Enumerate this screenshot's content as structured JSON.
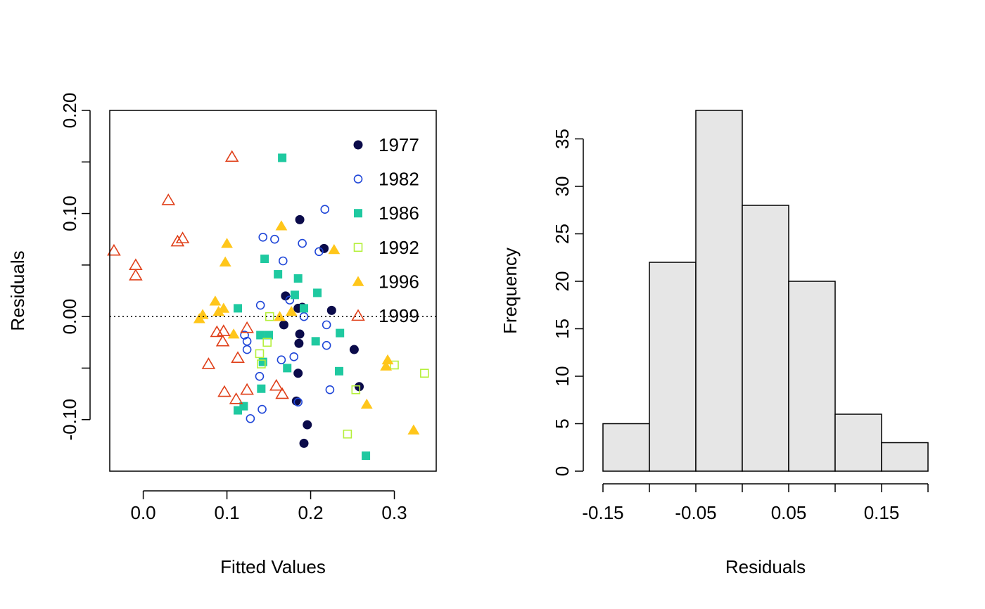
{
  "chart_data": [
    {
      "type": "scatter",
      "title": "",
      "xlabel": "Fitted Values",
      "ylabel": "Residuals",
      "xlim": [
        -0.04,
        0.35
      ],
      "ylim": [
        -0.15,
        0.2
      ],
      "xticks": [
        "0.0",
        "0.1",
        "0.2",
        "0.3"
      ],
      "yticks": [
        "-0.10",
        "0.00",
        "0.10",
        "0.20"
      ],
      "reference_line": {
        "y": 0,
        "style": "dotted"
      },
      "legend": {
        "placement": "top-right"
      },
      "series": [
        {
          "name": "1977",
          "color": "#0b0b4a",
          "marker": "filled-circle",
          "points": [
            [
              0.187,
              0.094
            ],
            [
              0.216,
              0.066
            ],
            [
              0.17,
              0.02
            ],
            [
              0.185,
              0.008
            ],
            [
              0.19,
              0.009
            ],
            [
              0.225,
              0.006
            ],
            [
              0.168,
              -0.008
            ],
            [
              0.187,
              -0.017
            ],
            [
              0.186,
              -0.026
            ],
            [
              0.185,
              -0.055
            ],
            [
              0.258,
              -0.068
            ],
            [
              0.252,
              -0.032
            ],
            [
              0.196,
              -0.105
            ],
            [
              0.192,
              -0.123
            ],
            [
              0.183,
              -0.082
            ]
          ]
        },
        {
          "name": "1982",
          "color": "#1f46d8",
          "marker": "open-circle",
          "points": [
            [
              0.217,
              0.104
            ],
            [
              0.143,
              0.077
            ],
            [
              0.157,
              0.075
            ],
            [
              0.19,
              0.071
            ],
            [
              0.21,
              0.063
            ],
            [
              0.167,
              0.054
            ],
            [
              0.175,
              0.016
            ],
            [
              0.14,
              0.011
            ],
            [
              0.192,
              0.0
            ],
            [
              0.219,
              -0.008
            ],
            [
              0.121,
              -0.018
            ],
            [
              0.124,
              -0.024
            ],
            [
              0.124,
              -0.032
            ],
            [
              0.219,
              -0.028
            ],
            [
              0.18,
              -0.039
            ],
            [
              0.165,
              -0.042
            ],
            [
              0.139,
              -0.058
            ],
            [
              0.223,
              -0.071
            ],
            [
              0.185,
              -0.083
            ],
            [
              0.142,
              -0.09
            ],
            [
              0.128,
              -0.099
            ]
          ]
        },
        {
          "name": "1986",
          "color": "#1fc9a0",
          "marker": "filled-square",
          "points": [
            [
              0.166,
              0.154
            ],
            [
              0.145,
              0.056
            ],
            [
              0.161,
              0.041
            ],
            [
              0.185,
              0.037
            ],
            [
              0.208,
              0.023
            ],
            [
              0.181,
              0.021
            ],
            [
              0.192,
              0.008
            ],
            [
              0.113,
              0.008
            ],
            [
              0.14,
              -0.018
            ],
            [
              0.15,
              -0.018
            ],
            [
              0.235,
              -0.016
            ],
            [
              0.206,
              -0.024
            ],
            [
              0.143,
              -0.044
            ],
            [
              0.172,
              -0.05
            ],
            [
              0.234,
              -0.053
            ],
            [
              0.141,
              -0.07
            ],
            [
              0.12,
              -0.087
            ],
            [
              0.113,
              -0.091
            ],
            [
              0.266,
              -0.135
            ]
          ]
        },
        {
          "name": "1992",
          "color": "#b5f03b",
          "marker": "open-square",
          "points": [
            [
              0.151,
              0.0
            ],
            [
              0.148,
              -0.025
            ],
            [
              0.139,
              -0.036
            ],
            [
              0.141,
              -0.046
            ],
            [
              0.3,
              -0.047
            ],
            [
              0.336,
              -0.055
            ],
            [
              0.254,
              -0.071
            ],
            [
              0.244,
              -0.114
            ]
          ]
        },
        {
          "name": "1996",
          "color": "#ffc61a",
          "marker": "filled-triangle",
          "points": [
            [
              0.165,
              0.088
            ],
            [
              0.1,
              0.071
            ],
            [
              0.228,
              0.065
            ],
            [
              0.098,
              0.053
            ],
            [
              0.086,
              0.015
            ],
            [
              0.096,
              0.008
            ],
            [
              0.09,
              0.005
            ],
            [
              0.177,
              0.005
            ],
            [
              0.071,
              0.002
            ],
            [
              0.163,
              0.0
            ],
            [
              0.067,
              -0.002
            ],
            [
              0.108,
              -0.017
            ],
            [
              0.292,
              -0.042
            ],
            [
              0.29,
              -0.048
            ],
            [
              0.267,
              -0.085
            ],
            [
              0.323,
              -0.11
            ]
          ]
        },
        {
          "name": "1999",
          "color": "#e0401a",
          "marker": "open-triangle",
          "points": [
            [
              0.106,
              0.155
            ],
            [
              0.03,
              0.113
            ],
            [
              0.047,
              0.076
            ],
            [
              0.041,
              0.073
            ],
            [
              -0.035,
              0.064
            ],
            [
              -0.009,
              0.05
            ],
            [
              -0.009,
              0.04
            ],
            [
              0.124,
              -0.011
            ],
            [
              0.096,
              -0.014
            ],
            [
              0.088,
              -0.015
            ],
            [
              0.095,
              -0.024
            ],
            [
              0.113,
              -0.04
            ],
            [
              0.078,
              -0.046
            ],
            [
              0.159,
              -0.067
            ],
            [
              0.124,
              -0.071
            ],
            [
              0.097,
              -0.073
            ],
            [
              0.166,
              -0.075
            ],
            [
              0.111,
              -0.08
            ]
          ]
        }
      ]
    },
    {
      "type": "bar",
      "subtype": "histogram",
      "title": "",
      "xlabel": "Residuals",
      "ylabel": "Frequency",
      "xlim": [
        -0.15,
        0.2
      ],
      "ylim": [
        0,
        38
      ],
      "xticks": [
        "-0.15",
        "-0.05",
        "0.05",
        "0.15"
      ],
      "yticks": [
        "0",
        "5",
        "10",
        "15",
        "20",
        "25",
        "30",
        "35"
      ],
      "bar_color": "#e6e6e6",
      "bin_edges": [
        -0.15,
        -0.1,
        -0.05,
        0.0,
        0.05,
        0.1,
        0.15,
        0.2
      ],
      "values": [
        5,
        22,
        38,
        28,
        20,
        6,
        3
      ]
    }
  ]
}
